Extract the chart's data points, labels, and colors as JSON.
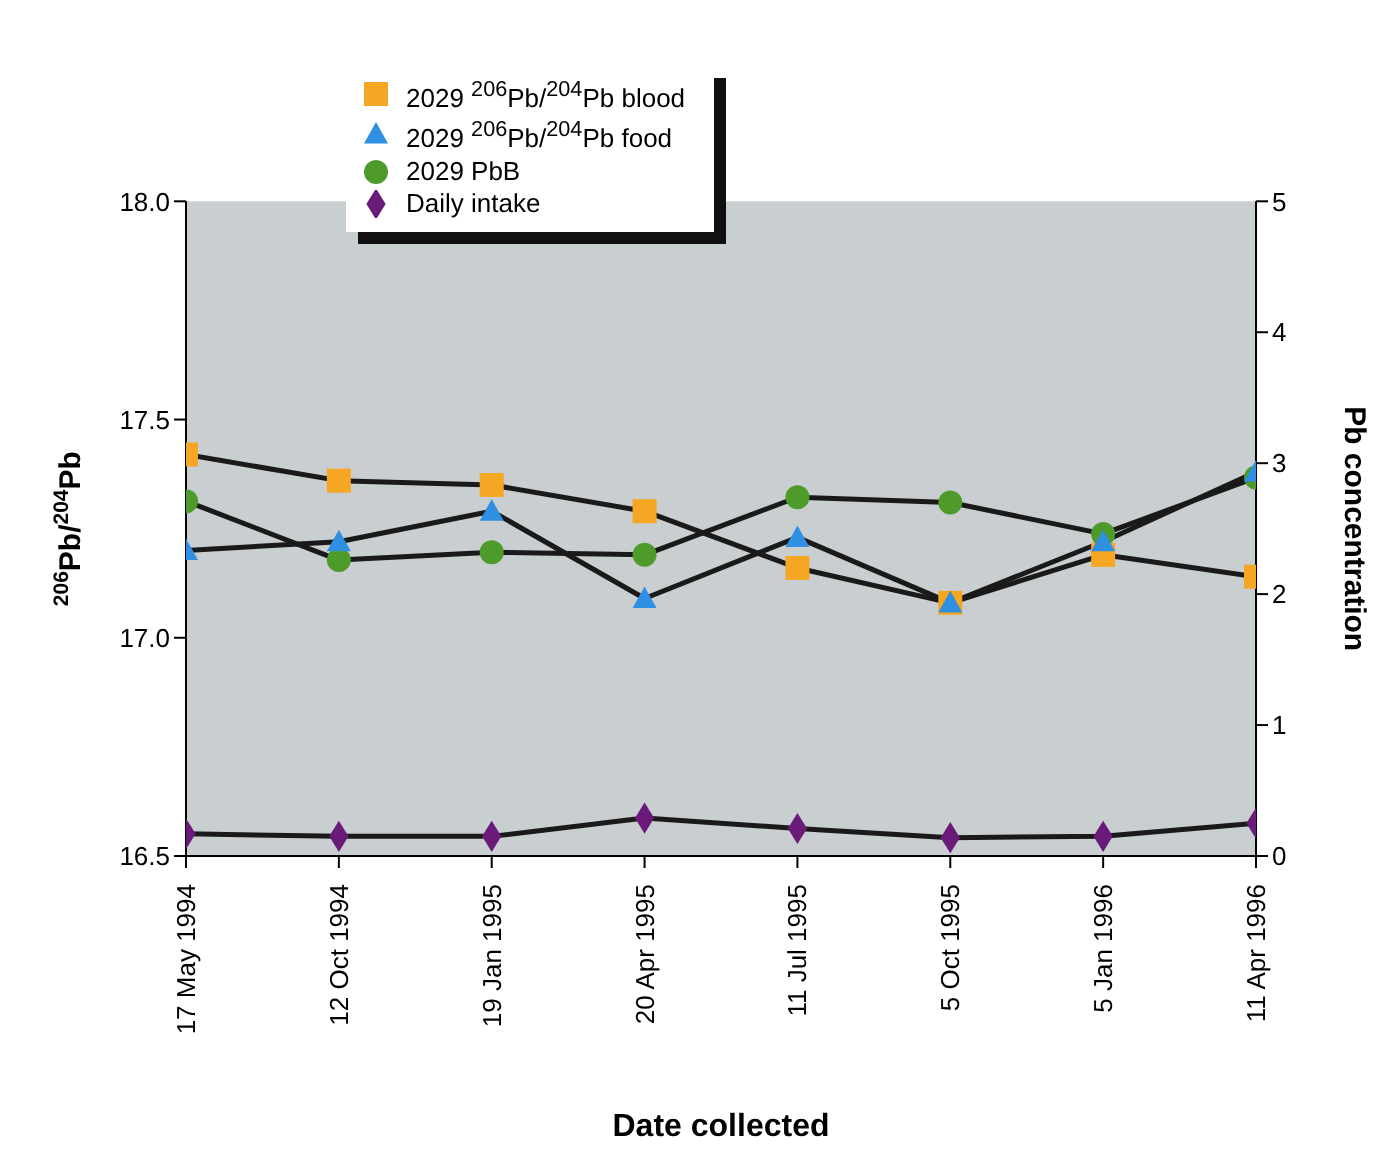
{
  "chart_data": {
    "type": "line",
    "xlabel": "Date collected",
    "ylabel": "$^{206}$Pb/$^{204}$Pb",
    "y2label": "Pb concentration",
    "categories": [
      "17 May 1994",
      "12 Oct 1994",
      "19 Jan 1995",
      "20 Apr 1995",
      "11 Jul 1995",
      "5 Oct 1995",
      "5 Jan 1996",
      "11 Apr 1996"
    ],
    "series": [
      {
        "name": "2029 $^{206}$Pb/$^{204}$Pb blood",
        "color": "#f5a623",
        "marker": "square",
        "values": [
          17.42,
          17.36,
          17.35,
          17.29,
          17.16,
          17.08,
          17.19,
          17.14
        ]
      },
      {
        "name": "2029 $^{206}$Pb/$^{204}$Pb food",
        "color": "#2f8fe0",
        "marker": "triangle",
        "values": [
          17.2,
          17.22,
          17.29,
          17.09,
          17.23,
          17.08,
          17.22,
          17.38
        ]
      },
      {
        "name": "2029 PbB",
        "color": "#4e9a2a",
        "marker": "circle",
        "axis": "y2",
        "values": [
          2.71,
          2.26,
          2.32,
          2.3,
          2.74,
          2.7,
          2.46,
          2.89
        ]
      },
      {
        "name": "Daily intake",
        "color": "#6a1a78",
        "marker": "diamond",
        "axis": "y2",
        "values": [
          0.17,
          0.15,
          0.15,
          0.29,
          0.21,
          0.14,
          0.15,
          0.25
        ]
      }
    ],
    "ylim": [
      16.5,
      18.0
    ],
    "yticks": [
      {
        "value": 16.5,
        "label": "16.5"
      },
      {
        "value": 17.0,
        "label": "17.0"
      },
      {
        "value": 17.5,
        "label": "17.5"
      },
      {
        "value": 18.0,
        "label": "18.0"
      }
    ],
    "y2lim": [
      0,
      5
    ],
    "y2ticks": [
      0,
      1,
      2,
      3,
      4,
      5
    ],
    "grid": false,
    "legend": "top left"
  }
}
